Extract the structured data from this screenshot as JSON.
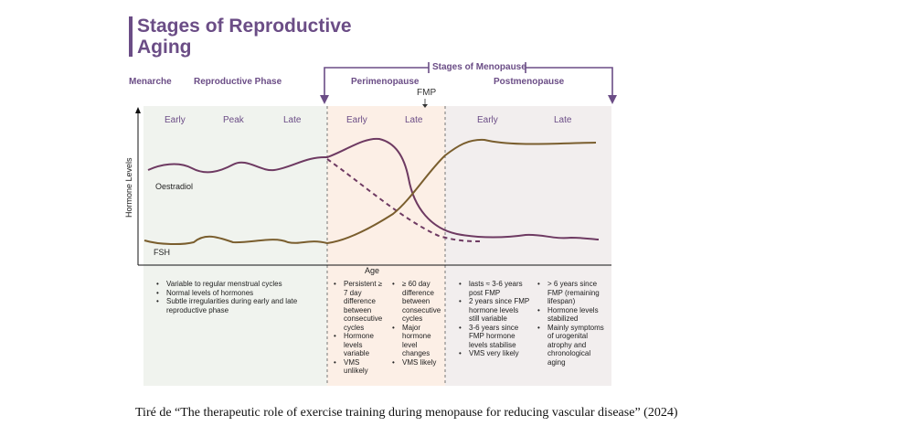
{
  "title": "Stages of Reproductive Aging",
  "phases": {
    "menarche": "Menarche",
    "reproductive": "Reproductive Phase",
    "menopause_stages": "Stages of Menopause",
    "perimenopause": "Perimenopause",
    "postmenopause": "Postmenopause",
    "fmp": "FMP"
  },
  "substages": {
    "reproductive": [
      "Early",
      "Peak",
      "Late"
    ],
    "perimenopause": [
      "Early",
      "Late"
    ],
    "postmenopause": [
      "Early",
      "Late"
    ]
  },
  "axes": {
    "y_label": "Hormone Levels",
    "x_label": "Age"
  },
  "series": {
    "oestradiol": "Oestradiol",
    "fsh": "FSH"
  },
  "notes": {
    "reproductive": [
      "Variable to regular menstrual cycles",
      "Normal levels of hormones",
      "Subtle irregularities during early and late reproductive phase"
    ],
    "peri_early": [
      "Persistent ≥ 7 day difference between consecutive cycles",
      "Hormone levels variable",
      "VMS unlikely"
    ],
    "peri_late": [
      "≥ 60 day difference between consecutive cycles",
      "Major hormone level changes",
      "VMS likely"
    ],
    "post_early": [
      "lasts ≈ 3-6 years post FMP",
      "2 years since FMP hormone levels still variable",
      "3-6 years since FMP hormone levels stabilise",
      "VMS very likely"
    ],
    "post_late": [
      "> 6 years since FMP (remaining lifespan)",
      "Hormone levels stabilized",
      "Mainly symptoms of urogenital atrophy and chronological aging"
    ]
  },
  "caption": "Tiré de “The therapeutic role of exercise training during menopause for reducing vascular disease” (2024)",
  "colors": {
    "accent": "#6b4d86",
    "oestradiol": "#6e3a62",
    "fsh": "#7a5e2e",
    "bg_reproductive": "#f0f3ee",
    "bg_perimenopause": "#fcefe6",
    "bg_postmenopause": "#f2eeee"
  }
}
